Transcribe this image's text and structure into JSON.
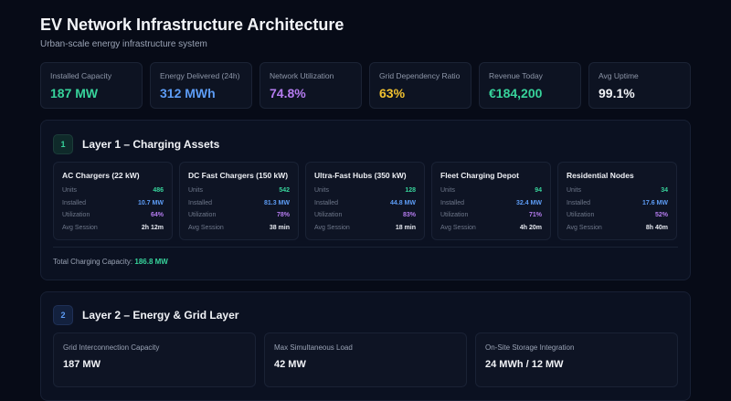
{
  "header": {
    "title": "EV Network Infrastructure Architecture",
    "subtitle": "Urban-scale energy infrastructure system"
  },
  "kpis": [
    {
      "label": "Installed Capacity",
      "value": "187 MW",
      "color": "#37d39b"
    },
    {
      "label": "Energy Delivered (24h)",
      "value": "312 MWh",
      "color": "#5d9cf5"
    },
    {
      "label": "Network Utilization",
      "value": "74.8%",
      "color": "#b57cf0"
    },
    {
      "label": "Grid Dependency Ratio",
      "value": "63%",
      "color": "#f2c230"
    },
    {
      "label": "Revenue Today",
      "value": "€184,200",
      "color": "#37d39b"
    },
    {
      "label": "Avg Uptime",
      "value": "99.1%",
      "color": "#f1f3f7"
    }
  ],
  "layer1": {
    "badge": "1",
    "title": "Layer 1 – Charging Assets",
    "row_labels": {
      "units": "Units",
      "installed": "Installed",
      "utilization": "Utilization",
      "session": "Avg Session"
    },
    "cards": [
      {
        "name": "AC Chargers (22 kW)",
        "units": "486",
        "installed": "10.7 MW",
        "utilization": "64%",
        "session": "2h 12m"
      },
      {
        "name": "DC Fast Chargers (150 kW)",
        "units": "542",
        "installed": "81.3 MW",
        "utilization": "78%",
        "session": "38 min"
      },
      {
        "name": "Ultra-Fast Hubs (350 kW)",
        "units": "128",
        "installed": "44.8 MW",
        "utilization": "83%",
        "session": "18 min"
      },
      {
        "name": "Fleet Charging Depot",
        "units": "94",
        "installed": "32.4 MW",
        "utilization": "71%",
        "session": "4h 20m"
      },
      {
        "name": "Residential Nodes",
        "units": "34",
        "installed": "17.6 MW",
        "utilization": "52%",
        "session": "8h 40m"
      }
    ],
    "total_label": "Total Charging Capacity:",
    "total_value": "186.8 MW"
  },
  "layer2": {
    "badge": "2",
    "title": "Layer 2 – Energy & Grid Layer",
    "cards": [
      {
        "label": "Grid Interconnection Capacity",
        "value": "187 MW"
      },
      {
        "label": "Max Simultaneous Load",
        "value": "42 MW"
      },
      {
        "label": "On-Site Storage Integration",
        "value": "24 MWh / 12 MW"
      }
    ]
  },
  "colors": {
    "units": "#37d39b",
    "installed": "#5d9cf5",
    "utilization": "#b57cf0"
  }
}
